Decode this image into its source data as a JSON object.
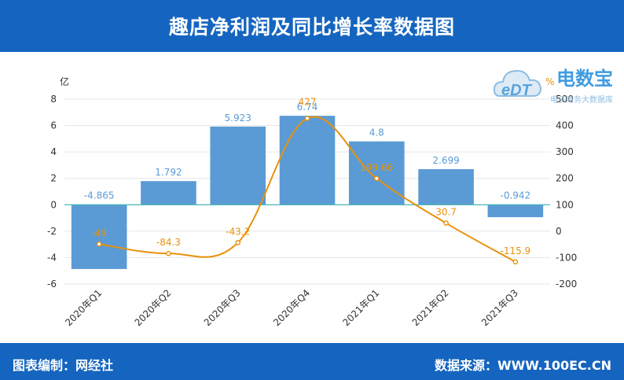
{
  "title": "趣店净利润及同比增长率数据图",
  "footer": {
    "editor": "图表编制：网经社",
    "source": "数据来源：WWW.100EC.CN"
  },
  "logo": {
    "brand": "电数宝",
    "sub": "电子商务大数据库",
    "mark": "eDT"
  },
  "colors": {
    "header": "#1565c0",
    "bar": "#5b9bd5",
    "line": "#e8910c",
    "zero_line": "#44b4b4",
    "bar_label": "#5b9bd5",
    "line_label": "#e8910c"
  },
  "chart_data": {
    "type": "bar+line",
    "title": "趣店净利润及同比增长率数据图",
    "categories": [
      "2020年Q1",
      "2020年Q2",
      "2020年Q3",
      "2020年Q4",
      "2021年Q1",
      "2021年Q2",
      "2021年Q3"
    ],
    "series": [
      {
        "name": "净利润",
        "type": "bar",
        "axis": "left",
        "unit": "亿",
        "values": [
          -4.865,
          1.792,
          5.923,
          6.74,
          4.8,
          2.699,
          -0.942
        ],
        "labels": [
          "-4.865",
          "1.792",
          "5.923",
          "6.74",
          "4.8",
          "2.699",
          "-0.942"
        ]
      },
      {
        "name": "同比增长率",
        "type": "line",
        "axis": "right",
        "unit": "%",
        "values": [
          -49,
          -84.3,
          -43.2,
          427,
          199.66,
          30.7,
          -115.9
        ],
        "labels": [
          "-49",
          "-84.3",
          "-43.2",
          "427",
          "199.66",
          "30.7",
          "-115.9"
        ]
      }
    ],
    "left_axis": {
      "label": "亿",
      "min": -6,
      "max": 8,
      "ticks": [
        8,
        6,
        4,
        2,
        0,
        -2,
        -4,
        -6
      ]
    },
    "right_axis": {
      "label": "%",
      "min": -200,
      "max": 500,
      "ticks": [
        500,
        400,
        300,
        200,
        100,
        0,
        -100,
        -200
      ]
    }
  }
}
